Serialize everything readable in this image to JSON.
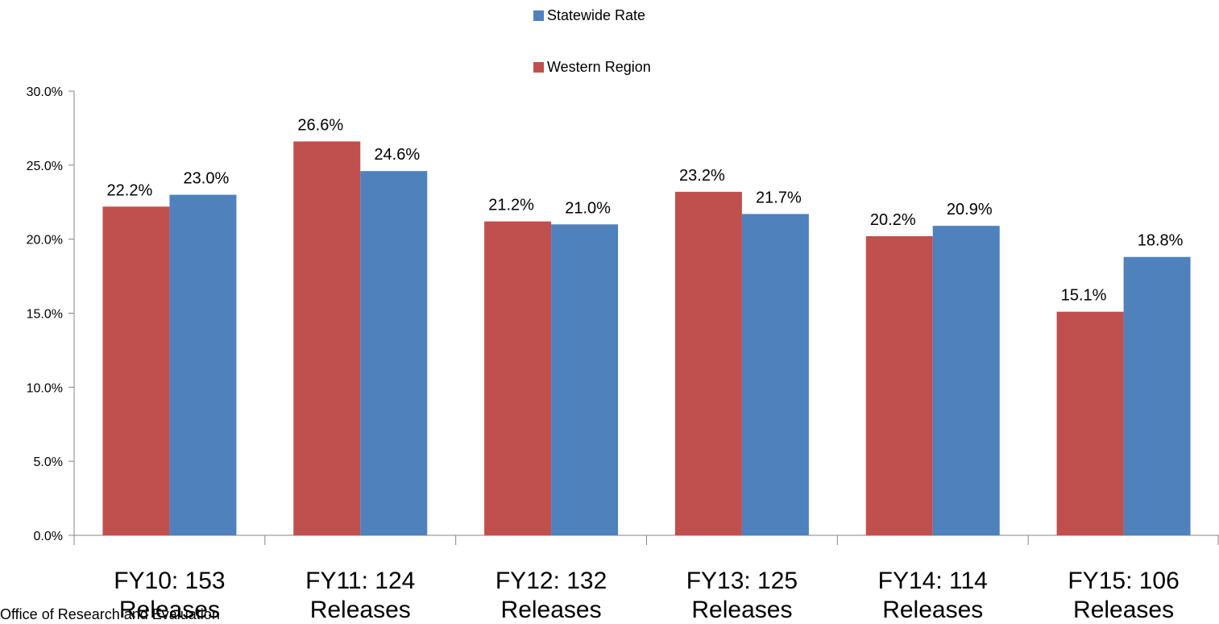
{
  "chart_data": {
    "type": "bar",
    "categories": [
      [
        "FY10: 153",
        "Releases"
      ],
      [
        "FY11: 124",
        "Releases"
      ],
      [
        "FY12: 132",
        "Releases"
      ],
      [
        "FY13: 125",
        "Releases"
      ],
      [
        "FY14: 114",
        "Releases"
      ],
      [
        "FY15: 106",
        "Releases"
      ]
    ],
    "series": [
      {
        "name": "Western Region",
        "color": "#C0504D",
        "values": [
          22.2,
          26.6,
          21.2,
          23.2,
          20.2,
          15.1
        ]
      },
      {
        "name": "Statewide Rate",
        "color": "#4F81BD",
        "values": [
          23.0,
          24.6,
          21.0,
          21.7,
          20.9,
          18.8
        ]
      }
    ],
    "legend_order": [
      "Statewide Rate",
      "Western Region"
    ],
    "legend_position": "top-center",
    "ylim": [
      0,
      30
    ],
    "yticks": [
      0,
      5,
      10,
      15,
      20,
      25,
      30
    ],
    "ytick_format": "percent-1dp",
    "grid": false,
    "title": "",
    "xlabel": "",
    "ylabel": ""
  },
  "footer": {
    "text": "Office of Research and Evaluation"
  }
}
